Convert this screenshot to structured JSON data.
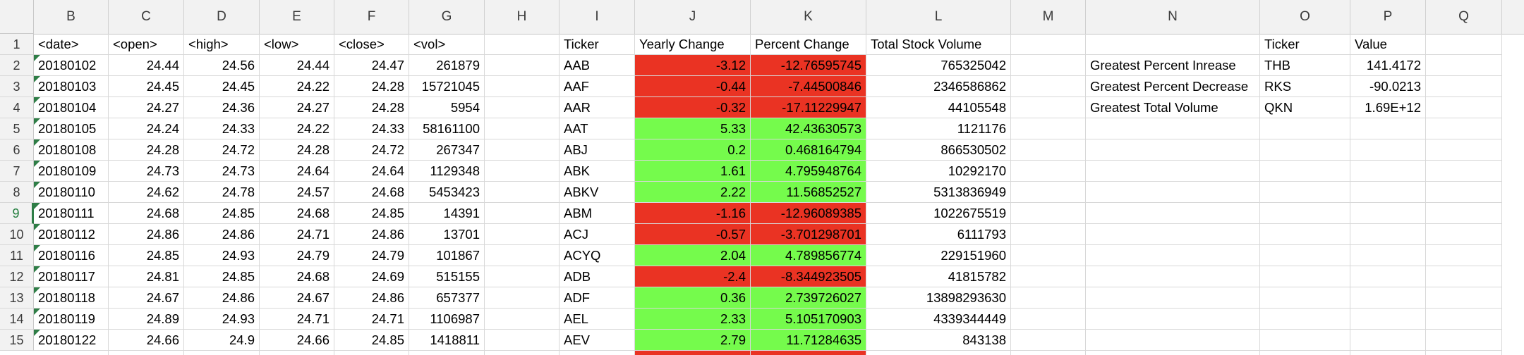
{
  "columns": [
    "B",
    "C",
    "D",
    "E",
    "F",
    "G",
    "H",
    "I",
    "J",
    "K",
    "L",
    "M",
    "N",
    "O",
    "P",
    "Q"
  ],
  "row_numbers": [
    "1",
    "2",
    "3",
    "4",
    "5",
    "6",
    "7",
    "8",
    "9",
    "10",
    "11",
    "12",
    "13",
    "14",
    "15"
  ],
  "selected_row": "9",
  "header_row": [
    "<date>",
    "<open>",
    "<high>",
    "<low>",
    "<close>",
    "<vol>",
    "",
    "Ticker",
    "Yearly Change",
    "Percent Change",
    "Total Stock Volume",
    "",
    "",
    "Ticker",
    "Value",
    ""
  ],
  "stock_rows": [
    [
      "20180102",
      "24.44",
      "24.56",
      "24.44",
      "24.47",
      "261879"
    ],
    [
      "20180103",
      "24.45",
      "24.45",
      "24.22",
      "24.28",
      "15721045"
    ],
    [
      "20180104",
      "24.27",
      "24.36",
      "24.27",
      "24.28",
      "5954"
    ],
    [
      "20180105",
      "24.24",
      "24.33",
      "24.22",
      "24.33",
      "58161100"
    ],
    [
      "20180108",
      "24.28",
      "24.72",
      "24.28",
      "24.72",
      "267347"
    ],
    [
      "20180109",
      "24.73",
      "24.73",
      "24.64",
      "24.64",
      "1129348"
    ],
    [
      "20180110",
      "24.62",
      "24.78",
      "24.57",
      "24.68",
      "5453423"
    ],
    [
      "20180111",
      "24.68",
      "24.85",
      "24.68",
      "24.85",
      "14391"
    ],
    [
      "20180112",
      "24.86",
      "24.86",
      "24.71",
      "24.86",
      "13701"
    ],
    [
      "20180116",
      "24.85",
      "24.93",
      "24.79",
      "24.79",
      "101867"
    ],
    [
      "20180117",
      "24.81",
      "24.85",
      "24.68",
      "24.69",
      "515155"
    ],
    [
      "20180118",
      "24.67",
      "24.86",
      "24.67",
      "24.86",
      "657377"
    ],
    [
      "20180119",
      "24.89",
      "24.93",
      "24.71",
      "24.71",
      "1106987"
    ],
    [
      "20180122",
      "24.66",
      "24.9",
      "24.66",
      "24.85",
      "1418811"
    ]
  ],
  "summary_rows": [
    {
      "ticker": "AAB",
      "change": "-3.12",
      "percent": "-12.76595745",
      "volume": "765325042",
      "status": "negative"
    },
    {
      "ticker": "AAF",
      "change": "-0.44",
      "percent": "-7.44500846",
      "volume": "2346586862",
      "status": "negative"
    },
    {
      "ticker": "AAR",
      "change": "-0.32",
      "percent": "-17.11229947",
      "volume": "44105548",
      "status": "negative"
    },
    {
      "ticker": "AAT",
      "change": "5.33",
      "percent": "42.43630573",
      "volume": "1121176",
      "status": "positive"
    },
    {
      "ticker": "ABJ",
      "change": "0.2",
      "percent": "0.468164794",
      "volume": "866530502",
      "status": "positive"
    },
    {
      "ticker": "ABK",
      "change": "1.61",
      "percent": "4.795948764",
      "volume": "10292170",
      "status": "positive"
    },
    {
      "ticker": "ABKV",
      "change": "2.22",
      "percent": "11.56852527",
      "volume": "5313836949",
      "status": "positive"
    },
    {
      "ticker": "ABM",
      "change": "-1.16",
      "percent": "-12.96089385",
      "volume": "1022675519",
      "status": "negative"
    },
    {
      "ticker": "ACJ",
      "change": "-0.57",
      "percent": "-3.701298701",
      "volume": "6111793",
      "status": "negative"
    },
    {
      "ticker": "ACYQ",
      "change": "2.04",
      "percent": "4.789856774",
      "volume": "229151960",
      "status": "positive"
    },
    {
      "ticker": "ADB",
      "change": "-2.4",
      "percent": "-8.344923505",
      "volume": "41815782",
      "status": "negative"
    },
    {
      "ticker": "ADF",
      "change": "0.36",
      "percent": "2.739726027",
      "volume": "13898293630",
      "status": "positive"
    },
    {
      "ticker": "AEL",
      "change": "2.33",
      "percent": "5.105170903",
      "volume": "4339344449",
      "status": "positive"
    },
    {
      "ticker": "AEV",
      "change": "2.79",
      "percent": "11.71284635",
      "volume": "843138",
      "status": "positive"
    }
  ],
  "greatest_rows": [
    {
      "label": "Greatest Percent Inrease",
      "ticker": "THB",
      "value": "141.4172"
    },
    {
      "label": "Greatest Percent Decrease",
      "ticker": "RKS",
      "value": "-90.0213"
    },
    {
      "label": "Greatest Total Volume",
      "ticker": "QKN",
      "value": "1.69E+12"
    }
  ],
  "colors": {
    "negative": "#ea3323",
    "positive": "#75fb4c",
    "selection": "#2e7d46"
  }
}
